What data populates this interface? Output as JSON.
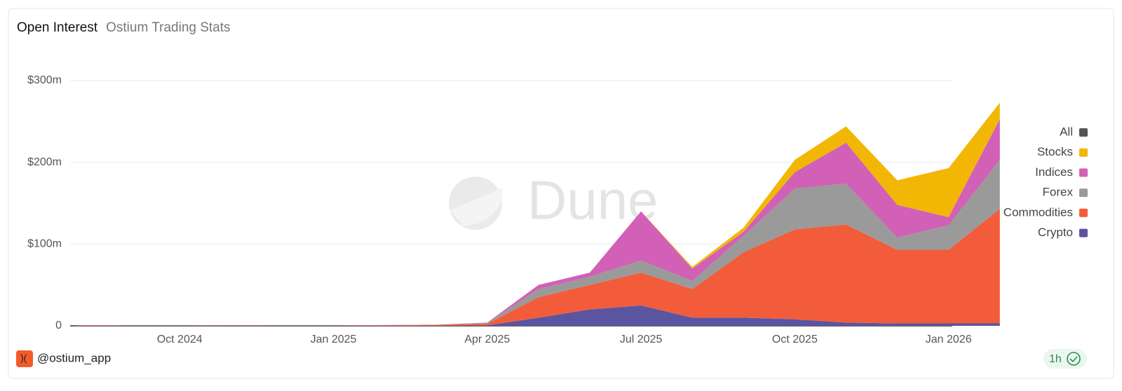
{
  "chart_data": {
    "type": "stacked-area",
    "title": "Open Interest",
    "subtitle": "Ostium Trading Stats",
    "x": [
      "Aug 2024",
      "Sep 2024",
      "Oct 2024",
      "Nov 2024",
      "Dec 2024",
      "Jan 2025",
      "Feb 2025",
      "Mar 2025",
      "Apr 2025",
      "May 2025",
      "Jun 2025",
      "Jul 2025",
      "Aug 2025",
      "Sep 2025",
      "Oct 2025",
      "Nov 2025",
      "Dec 2025",
      "Jan 2026",
      "Feb 2026"
    ],
    "xticks": [
      "Oct 2024",
      "Jan 2025",
      "Apr 2025",
      "Jul 2025",
      "Oct 2025",
      "Jan 2026"
    ],
    "series": [
      {
        "name": "Crypto",
        "color": "#5b55a0",
        "values": [
          0,
          0,
          0,
          0,
          0,
          0,
          0,
          0,
          500000,
          10000000,
          20000000,
          25000000,
          10000000,
          10000000,
          8000000,
          4000000,
          3000000,
          3000000,
          3000000
        ]
      },
      {
        "name": "Commodities",
        "color": "#f25c3b",
        "values": [
          500000,
          200000,
          200000,
          200000,
          200000,
          200000,
          500000,
          1000000,
          2000000,
          25000000,
          30000000,
          40000000,
          35000000,
          80000000,
          110000000,
          120000000,
          90000000,
          90000000,
          140000000
        ]
      },
      {
        "name": "Forex",
        "color": "#9a9a9a",
        "values": [
          0,
          0,
          0,
          0,
          0,
          0,
          0,
          500000,
          1000000,
          10000000,
          10000000,
          15000000,
          10000000,
          20000000,
          50000000,
          50000000,
          15000000,
          30000000,
          60000000
        ]
      },
      {
        "name": "Indices",
        "color": "#d160b6",
        "values": [
          500000,
          0,
          0,
          500000,
          0,
          0,
          500000,
          0,
          500000,
          5000000,
          5000000,
          60000000,
          15000000,
          5000000,
          20000000,
          50000000,
          40000000,
          10000000,
          50000000
        ]
      },
      {
        "name": "Stocks",
        "color": "#f2b705",
        "values": [
          0,
          0,
          0,
          0,
          0,
          0,
          0,
          0,
          0,
          0,
          0,
          0,
          2000000,
          5000000,
          15000000,
          20000000,
          30000000,
          60000000,
          20000000
        ]
      },
      {
        "name": "All",
        "color": "#555555",
        "values": [
          0,
          0,
          0,
          0,
          0,
          0,
          0,
          0,
          0,
          0,
          0,
          0,
          0,
          0,
          0,
          0,
          0,
          0,
          0
        ]
      }
    ],
    "ylim": [
      0,
      330000000
    ],
    "yticks": [
      0,
      {
        "value": 100000000,
        "label": "$100m"
      },
      {
        "value": 200000000,
        "label": "$200m"
      },
      {
        "value": 300000000,
        "label": "$300m"
      }
    ],
    "grid": true,
    "legend": "right"
  },
  "watermark": "Dune",
  "footer": {
    "author": "@ostium_app",
    "refresh": "1h"
  }
}
